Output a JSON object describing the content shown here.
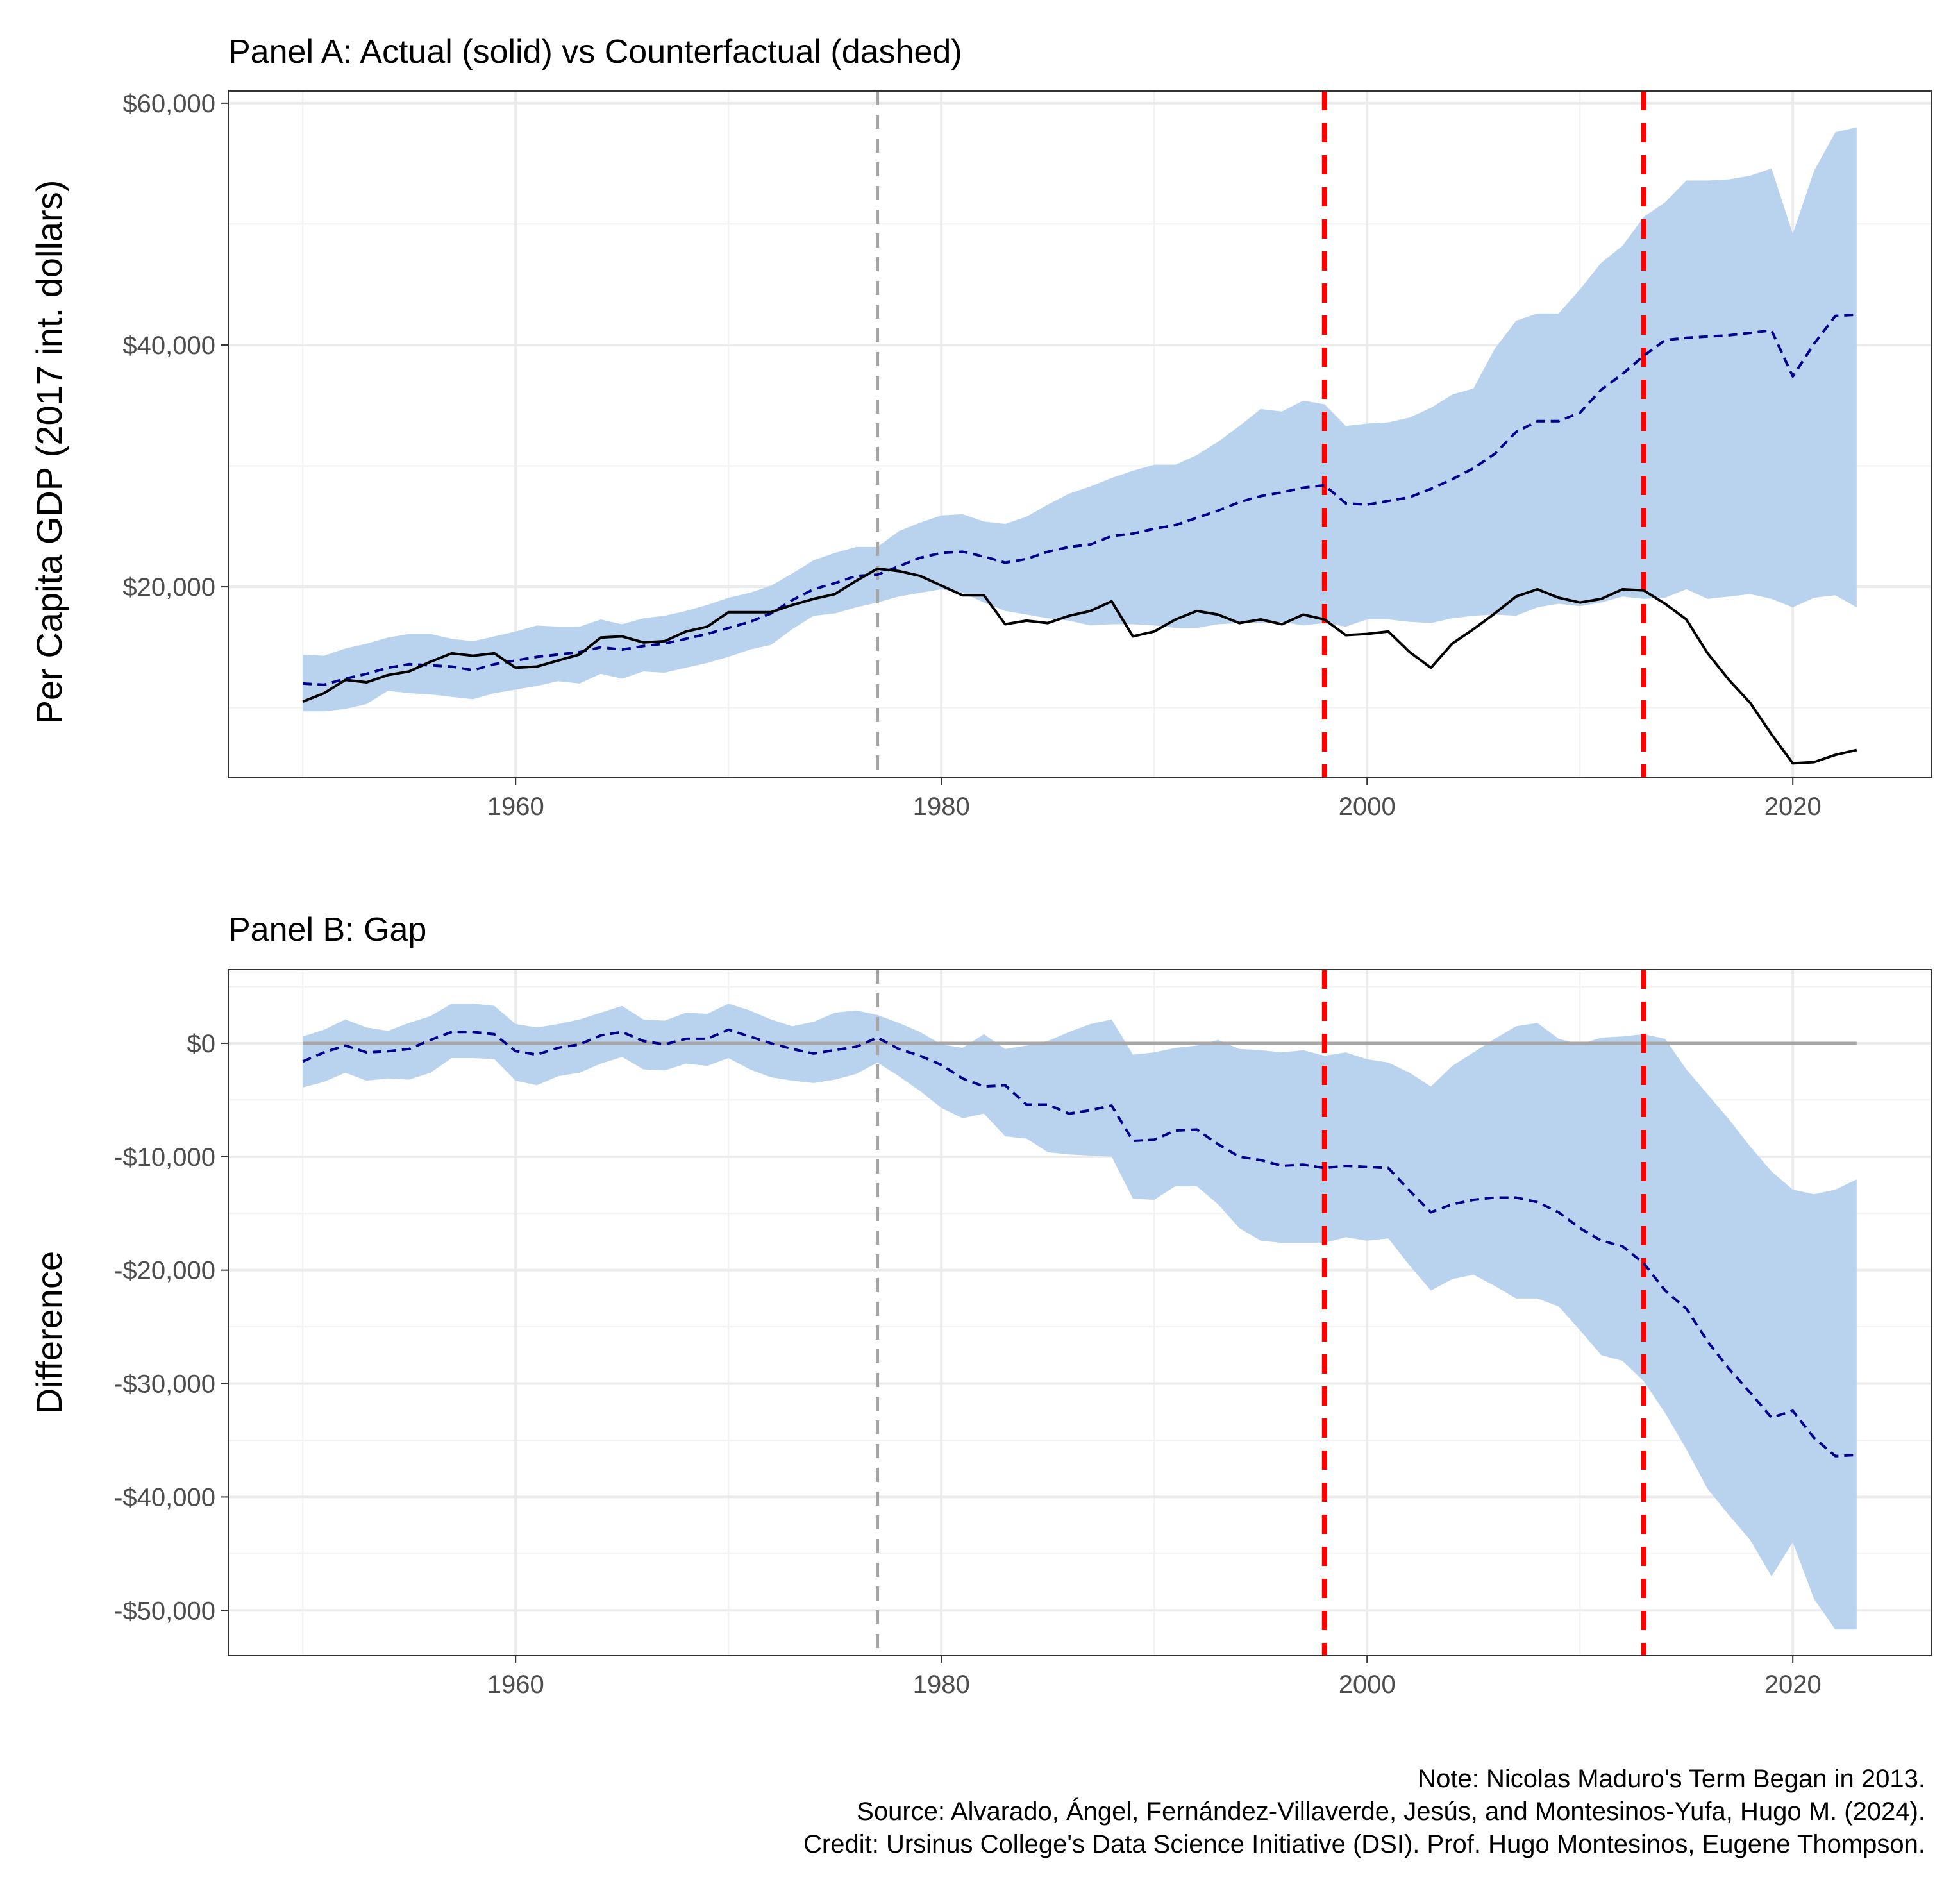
{
  "caption": {
    "lines": [
      "Note: Nicolas Maduro's Term Began in 2013.",
      "Source: Alvarado, Ángel, Fernández-Villaverde, Jesús, and Montesinos-Yufa, Hugo M. (2024).",
      "Credit: Ursinus College's Data Science Initiative (DSI). Prof. Hugo Montesinos, Eugene Thompson."
    ]
  },
  "colors": {
    "band": "#b9d3ef",
    "actual": "#000000",
    "counterfactual": "#00008b",
    "treatment_line": "#a6a6a6",
    "policy_lines": "#ff0000",
    "zero_line": "#a6a6a6"
  },
  "chart_data": [
    {
      "id": "panel-a",
      "type": "line",
      "title": "Panel A: Actual (solid) vs Counterfactual (dashed)",
      "xlabel": "",
      "ylabel": "Per Capita GDP (2017 int. dollars)",
      "xlim": [
        1946.5,
        2026.5
      ],
      "ylim": [
        4200,
        61000
      ],
      "x_ticks": [
        1960,
        1980,
        2000,
        2020
      ],
      "x_tick_labels": [
        "1960",
        "1980",
        "2000",
        "2020"
      ],
      "y_ticks": [
        20000,
        40000,
        60000
      ],
      "y_tick_labels": [
        "$20,000",
        "$40,000",
        "$60,000"
      ],
      "grid": true,
      "legend": "none",
      "vlines": [
        {
          "x": 1977,
          "style": "dashed",
          "color": "#a6a6a6"
        },
        {
          "x": 1998,
          "style": "dashed",
          "color": "#ff0000"
        },
        {
          "x": 2013,
          "style": "dashed",
          "color": "#ff0000"
        }
      ],
      "x": [
        1950,
        1951,
        1952,
        1953,
        1954,
        1955,
        1956,
        1957,
        1958,
        1959,
        1960,
        1961,
        1962,
        1963,
        1964,
        1965,
        1966,
        1967,
        1968,
        1969,
        1970,
        1971,
        1972,
        1973,
        1974,
        1975,
        1976,
        1977,
        1978,
        1979,
        1980,
        1981,
        1982,
        1983,
        1984,
        1985,
        1986,
        1987,
        1988,
        1989,
        1990,
        1991,
        1992,
        1993,
        1994,
        1995,
        1996,
        1997,
        1998,
        1999,
        2000,
        2001,
        2002,
        2003,
        2004,
        2005,
        2006,
        2007,
        2008,
        2009,
        2010,
        2011,
        2012,
        2013,
        2014,
        2015,
        2016,
        2017,
        2018,
        2019,
        2020,
        2021,
        2022,
        2023
      ],
      "series": [
        {
          "role": "ci-band",
          "lower": [
            9700,
            9700,
            9900,
            10300,
            11400,
            11200,
            11100,
            10900,
            10700,
            11200,
            11500,
            11800,
            12200,
            12000,
            12800,
            12400,
            13000,
            12900,
            13300,
            13700,
            14200,
            14800,
            15200,
            16500,
            17600,
            17800,
            18300,
            18700,
            19200,
            19500,
            19800,
            19500,
            18700,
            18000,
            17700,
            17400,
            17200,
            16800,
            16900,
            16900,
            16800,
            16600,
            16600,
            16900,
            17000,
            17000,
            17100,
            16800,
            17000,
            16700,
            17300,
            17300,
            17100,
            17000,
            17400,
            17600,
            17700,
            17600,
            18300,
            18600,
            18400,
            18700,
            19200,
            19000,
            19100,
            19800,
            19000,
            19200,
            19400,
            19000,
            18300,
            19100,
            19300,
            18300
          ],
          "upper": [
            14400,
            14300,
            14900,
            15300,
            15800,
            16100,
            16100,
            15700,
            15500,
            15900,
            16300,
            16800,
            16700,
            16700,
            17300,
            16900,
            17400,
            17600,
            18000,
            18500,
            19100,
            19500,
            20100,
            21100,
            22200,
            22800,
            23300,
            23300,
            24600,
            25300,
            25900,
            26000,
            25400,
            25200,
            25800,
            26800,
            27700,
            28300,
            29000,
            29600,
            30100,
            30100,
            30900,
            32000,
            33300,
            34700,
            34500,
            35400,
            35100,
            33300,
            33500,
            33600,
            34000,
            34800,
            35900,
            36400,
            39700,
            42000,
            42600,
            42600,
            44600,
            46800,
            48200,
            50600,
            51800,
            53600,
            53600,
            53700,
            54000,
            54600,
            49200,
            54400,
            57600,
            58000
          ]
        },
        {
          "role": "counterfactual",
          "name": "",
          "style": "dashed",
          "values": [
            12000,
            11900,
            12400,
            12800,
            13300,
            13600,
            13500,
            13400,
            13100,
            13600,
            13900,
            14200,
            14400,
            14600,
            15000,
            14800,
            15100,
            15300,
            15700,
            16100,
            16600,
            17100,
            17800,
            18900,
            19800,
            20300,
            20900,
            21000,
            21700,
            22400,
            22800,
            22900,
            22500,
            22000,
            22300,
            22900,
            23300,
            23500,
            24200,
            24400,
            24800,
            25100,
            25700,
            26300,
            27000,
            27500,
            27800,
            28200,
            28400,
            26900,
            26800,
            27100,
            27400,
            28100,
            28900,
            29800,
            31000,
            32800,
            33700,
            33700,
            34400,
            36300,
            37600,
            39100,
            40400,
            40600,
            40700,
            40800,
            41000,
            41200,
            37400,
            40100,
            42400,
            42500
          ]
        },
        {
          "role": "actual",
          "name": "",
          "style": "solid",
          "values": [
            10500,
            11200,
            12300,
            12100,
            12700,
            13000,
            13800,
            14500,
            14300,
            14500,
            13300,
            13400,
            13900,
            14400,
            15800,
            15900,
            15400,
            15500,
            16300,
            16700,
            17900,
            17900,
            17900,
            18500,
            19000,
            19400,
            20500,
            21500,
            21300,
            20900,
            20100,
            19300,
            19300,
            16900,
            17200,
            17000,
            17600,
            18000,
            18800,
            15900,
            16300,
            17300,
            18000,
            17700,
            17000,
            17300,
            16900,
            17700,
            17300,
            16000,
            16100,
            16300,
            14600,
            13300,
            15300,
            16500,
            17800,
            19200,
            19800,
            19100,
            18700,
            19000,
            19800,
            19700,
            18600,
            17300,
            14500,
            12300,
            10400,
            7800,
            5400,
            5500,
            6100,
            6500
          ]
        }
      ]
    },
    {
      "id": "panel-b",
      "type": "line",
      "title": "Panel B: Gap",
      "xlabel": "",
      "ylabel": "Difference",
      "xlim": [
        1946.5,
        2026.5
      ],
      "ylim": [
        -54000,
        6500
      ],
      "x_ticks": [
        1960,
        1980,
        2000,
        2020
      ],
      "x_tick_labels": [
        "1960",
        "1980",
        "2000",
        "2020"
      ],
      "y_ticks": [
        -50000,
        -40000,
        -30000,
        -20000,
        -10000,
        0
      ],
      "y_tick_labels": [
        "-$50,000",
        "-$40,000",
        "-$30,000",
        "-$20,000",
        "-$10,000",
        "$0"
      ],
      "grid": true,
      "legend": "none",
      "hlines": [
        {
          "y": 0,
          "color": "#a6a6a6"
        }
      ],
      "vlines": [
        {
          "x": 1977,
          "style": "dashed",
          "color": "#a6a6a6"
        },
        {
          "x": 1998,
          "style": "dashed",
          "color": "#ff0000"
        },
        {
          "x": 2013,
          "style": "dashed",
          "color": "#ff0000"
        }
      ],
      "x": [
        1950,
        1951,
        1952,
        1953,
        1954,
        1955,
        1956,
        1957,
        1958,
        1959,
        1960,
        1961,
        1962,
        1963,
        1964,
        1965,
        1966,
        1967,
        1968,
        1969,
        1970,
        1971,
        1972,
        1973,
        1974,
        1975,
        1976,
        1977,
        1978,
        1979,
        1980,
        1981,
        1982,
        1983,
        1984,
        1985,
        1986,
        1987,
        1988,
        1989,
        1990,
        1991,
        1992,
        1993,
        1994,
        1995,
        1996,
        1997,
        1998,
        1999,
        2000,
        2001,
        2002,
        2003,
        2004,
        2005,
        2006,
        2007,
        2008,
        2009,
        2010,
        2011,
        2012,
        2013,
        2014,
        2015,
        2016,
        2017,
        2018,
        2019,
        2020,
        2021,
        2022,
        2023
      ],
      "series": [
        {
          "role": "ci-band",
          "lower": [
            -3900,
            -3400,
            -2600,
            -3300,
            -3100,
            -3200,
            -2600,
            -1300,
            -1300,
            -1400,
            -3300,
            -3700,
            -2900,
            -2600,
            -1800,
            -1200,
            -2300,
            -2400,
            -1800,
            -2000,
            -1300,
            -2300,
            -3000,
            -3300,
            -3500,
            -3200,
            -2700,
            -1700,
            -2900,
            -4200,
            -5700,
            -6600,
            -6200,
            -8200,
            -8400,
            -9600,
            -9800,
            -9900,
            -10000,
            -13700,
            -13800,
            -12600,
            -12600,
            -14200,
            -16300,
            -17400,
            -17600,
            -17600,
            -17600,
            -17100,
            -17400,
            -17200,
            -19600,
            -21800,
            -20800,
            -20400,
            -21400,
            -22500,
            -22500,
            -23200,
            -25300,
            -27500,
            -28000,
            -29800,
            -32600,
            -35800,
            -39300,
            -41600,
            -43800,
            -47000,
            -44000,
            -49000,
            -51700,
            -51700
          ],
          "upper": [
            600,
            1200,
            2100,
            1400,
            1100,
            1800,
            2400,
            3500,
            3500,
            3300,
            1700,
            1400,
            1700,
            2100,
            2700,
            3300,
            2100,
            2000,
            2700,
            2600,
            3500,
            2900,
            2100,
            1500,
            1900,
            2700,
            2900,
            2500,
            1800,
            1000,
            -100,
            -400,
            800,
            -500,
            -200,
            200,
            1000,
            1700,
            2100,
            -1000,
            -800,
            -400,
            -200,
            300,
            -500,
            -600,
            -800,
            -600,
            -1100,
            -800,
            -1400,
            -1700,
            -2600,
            -3800,
            -2000,
            -800,
            400,
            1500,
            1800,
            400,
            -100,
            500,
            600,
            800,
            400,
            -2300,
            -4500,
            -6700,
            -9100,
            -11300,
            -12900,
            -13300,
            -12900,
            -12000
          ]
        },
        {
          "role": "gap",
          "name": "",
          "style": "dashed",
          "values": [
            -1600,
            -800,
            -200,
            -800,
            -700,
            -500,
            300,
            1000,
            1000,
            800,
            -700,
            -1000,
            -400,
            -100,
            700,
            1000,
            200,
            -100,
            400,
            400,
            1200,
            600,
            0,
            -500,
            -900,
            -600,
            -300,
            500,
            -500,
            -1100,
            -1900,
            -3100,
            -3800,
            -3700,
            -5400,
            -5400,
            -6200,
            -5900,
            -5500,
            -8600,
            -8500,
            -7700,
            -7600,
            -8900,
            -10000,
            -10300,
            -10800,
            -10700,
            -11000,
            -10800,
            -10900,
            -11000,
            -13000,
            -14900,
            -14200,
            -13800,
            -13600,
            -13600,
            -14000,
            -14900,
            -16300,
            -17400,
            -17900,
            -19400,
            -21800,
            -23400,
            -26300,
            -28700,
            -30800,
            -33000,
            -32400,
            -34800,
            -36400,
            -36300
          ]
        }
      ]
    }
  ]
}
